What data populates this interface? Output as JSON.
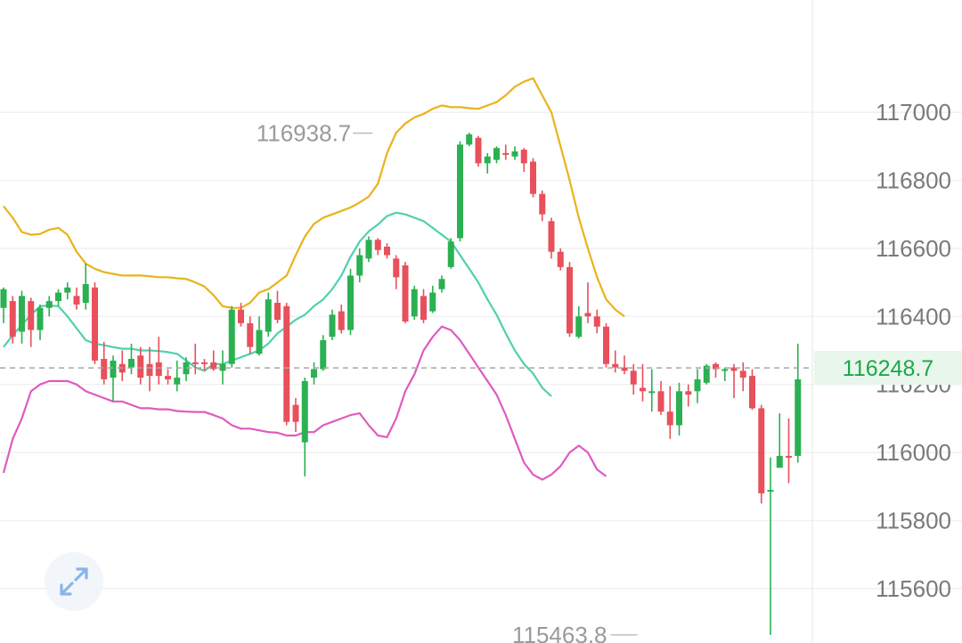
{
  "chart_data": {
    "type": "candlestick",
    "y_axis": {
      "ticks": [
        "117000",
        "116800",
        "116600",
        "116400",
        "116200",
        "116000",
        "115800",
        "115600"
      ],
      "tick_values": [
        117000,
        116800,
        116600,
        116400,
        116200,
        116000,
        115800,
        115600
      ],
      "position": "right",
      "ylim": [
        115440,
        117330
      ]
    },
    "grid": true,
    "current_price": {
      "value": 116248.7,
      "label": "116248.7"
    },
    "extremes": {
      "high": {
        "label": "116938.7",
        "value": 116938.7,
        "index": 41
      },
      "low": {
        "label": "115463.8",
        "value": 115463.8,
        "index": 70
      }
    },
    "candles": [
      [
        116425,
        116480,
        116380,
        116485
      ],
      [
        116445,
        116340,
        116320,
        116460
      ],
      [
        116355,
        116460,
        116320,
        116475
      ],
      [
        116445,
        116360,
        116310,
        116455
      ],
      [
        116360,
        116425,
        116330,
        116435
      ],
      [
        116425,
        116445,
        116400,
        116460
      ],
      [
        116445,
        116470,
        116430,
        116480
      ],
      [
        116470,
        116485,
        116450,
        116500
      ],
      [
        116460,
        116435,
        116420,
        116485
      ],
      [
        116440,
        116495,
        116420,
        116555
      ],
      [
        116485,
        116270,
        116260,
        116500
      ],
      [
        116275,
        116215,
        116200,
        116325
      ],
      [
        116220,
        116270,
        116150,
        116285
      ],
      [
        116260,
        116235,
        116210,
        116300
      ],
      [
        116250,
        116275,
        116230,
        116320
      ],
      [
        116285,
        116220,
        116200,
        116310
      ],
      [
        116260,
        116225,
        116180,
        116310
      ],
      [
        116265,
        116225,
        116200,
        116340
      ],
      [
        116225,
        116215,
        116200,
        116245
      ],
      [
        116200,
        116220,
        116180,
        116270
      ],
      [
        116230,
        116265,
        116210,
        116280
      ],
      [
        116265,
        116260,
        116230,
        116320
      ],
      [
        116265,
        116260,
        116240,
        116275
      ],
      [
        116265,
        116245,
        116240,
        116300
      ],
      [
        116240,
        116260,
        116200,
        116300
      ],
      [
        116260,
        116420,
        116250,
        116430
      ],
      [
        116420,
        116380,
        116370,
        116440
      ],
      [
        116380,
        116310,
        116290,
        116400
      ],
      [
        116290,
        116360,
        116285,
        116400
      ],
      [
        116355,
        116450,
        116340,
        116470
      ],
      [
        116440,
        116390,
        116380,
        116475
      ],
      [
        116430,
        116090,
        116080,
        116440
      ],
      [
        116140,
        116090,
        116060,
        116160
      ],
      [
        116030,
        116210,
        115930,
        116220
      ],
      [
        116220,
        116245,
        116200,
        116265
      ],
      [
        116245,
        116330,
        116240,
        116345
      ],
      [
        116340,
        116405,
        116330,
        116420
      ],
      [
        116415,
        116360,
        116350,
        116435
      ],
      [
        116360,
        116520,
        116345,
        116540
      ],
      [
        116520,
        116580,
        116500,
        116600
      ],
      [
        116570,
        116625,
        116560,
        116635
      ],
      [
        116625,
        116595,
        116580,
        116630
      ],
      [
        116605,
        116580,
        116570,
        116615
      ],
      [
        116570,
        116515,
        116480,
        116580
      ],
      [
        116550,
        116385,
        116380,
        116560
      ],
      [
        116400,
        116480,
        116390,
        116490
      ],
      [
        116460,
        116390,
        116380,
        116480
      ],
      [
        116415,
        116470,
        116410,
        116490
      ],
      [
        116480,
        116510,
        116470,
        116520
      ],
      [
        116545,
        116620,
        116540,
        116630
      ],
      [
        116630,
        116905,
        116620,
        116915
      ],
      [
        116905,
        116935,
        116900,
        116940
      ],
      [
        116925,
        116850,
        116840,
        116930
      ],
      [
        116850,
        116870,
        116820,
        116880
      ],
      [
        116860,
        116895,
        116850,
        116900
      ],
      [
        116880,
        116875,
        116860,
        116905
      ],
      [
        116870,
        116885,
        116860,
        116900
      ],
      [
        116890,
        116850,
        116825,
        116895
      ],
      [
        116855,
        116760,
        116750,
        116865
      ],
      [
        116760,
        116700,
        116680,
        116770
      ],
      [
        116680,
        116590,
        116570,
        116690
      ],
      [
        116590,
        116545,
        116535,
        116600
      ],
      [
        116545,
        116350,
        116340,
        116560
      ],
      [
        116340,
        116400,
        116335,
        116430
      ],
      [
        116410,
        116400,
        116380,
        116500
      ],
      [
        116400,
        116370,
        116350,
        116420
      ],
      [
        116370,
        116260,
        116250,
        116380
      ],
      [
        116260,
        116250,
        116235,
        116300
      ],
      [
        116250,
        116240,
        116230,
        116285
      ],
      [
        116240,
        116200,
        116170,
        116260
      ],
      [
        116190,
        116180,
        116150,
        116260
      ],
      [
        116180,
        116180,
        116120,
        116245
      ],
      [
        116180,
        116120,
        116110,
        116210
      ],
      [
        116120,
        116080,
        116040,
        116195
      ],
      [
        116080,
        116180,
        116050,
        116205
      ],
      [
        116180,
        116170,
        116135,
        116200
      ],
      [
        116180,
        116215,
        116145,
        116245
      ],
      [
        116205,
        116255,
        116200,
        116260
      ],
      [
        116260,
        116245,
        116220,
        116265
      ],
      [
        116245,
        116245,
        116210,
        116250
      ],
      [
        116250,
        116240,
        116160,
        116260
      ],
      [
        116240,
        116220,
        116180,
        116265
      ],
      [
        116225,
        116130,
        116125,
        116245
      ],
      [
        116130,
        115880,
        115850,
        116140
      ],
      [
        115885,
        115890,
        115463.8,
        115985
      ],
      [
        115955,
        115990,
        115960,
        116115
      ],
      [
        115990,
        115985,
        115910,
        116100
      ],
      [
        115990,
        116215,
        115970,
        116320
      ]
    ],
    "series": [
      {
        "name": "",
        "color": "#e9b319",
        "values": [
          116724,
          116690,
          116648,
          116640,
          116642,
          116655,
          116660,
          116640,
          116590,
          116555,
          116540,
          116530,
          116525,
          116520,
          116520,
          116520,
          116518,
          116515,
          116515,
          116512,
          116510,
          116500,
          116488,
          116462,
          116430,
          116425,
          116425,
          116440,
          116470,
          116480,
          116500,
          116520,
          116580,
          116635,
          116672,
          116690,
          116700,
          116710,
          116720,
          116735,
          116752,
          116790,
          116880,
          116940,
          116967,
          116985,
          116995,
          117010,
          117020,
          117015,
          117015,
          117012,
          117010,
          117020,
          117030,
          117050,
          117075,
          117090,
          117100,
          117050,
          117000,
          116900,
          116800,
          116690,
          116600,
          116515,
          116450,
          116420,
          116400
        ]
      },
      {
        "name": "",
        "color": "#4fd1ad",
        "values": [
          116310,
          116345,
          116375,
          116405,
          116430,
          116432,
          116430,
          116400,
          116365,
          116330,
          116320,
          116315,
          116310,
          116305,
          116305,
          116300,
          116300,
          116298,
          116295,
          116290,
          116270,
          116250,
          116240,
          116260,
          116260,
          116270,
          116280,
          116290,
          116300,
          116320,
          116350,
          116370,
          116390,
          116405,
          116430,
          116450,
          116480,
          116520,
          116575,
          116620,
          116650,
          116670,
          116695,
          116705,
          116700,
          116690,
          116680,
          116660,
          116640,
          116620,
          116580,
          116540,
          116500,
          116450,
          116405,
          116350,
          116300,
          116260,
          116232,
          116190,
          116165
        ]
      },
      {
        "name": "",
        "color": "#e05ac0",
        "values": [
          115940,
          116040,
          116100,
          116180,
          116200,
          116210,
          116210,
          116210,
          116200,
          116180,
          116170,
          116160,
          116150,
          116150,
          116140,
          116130,
          116130,
          116127,
          116127,
          116122,
          116120,
          116119,
          116119,
          116110,
          116100,
          116080,
          116070,
          116070,
          116065,
          116060,
          116058,
          116050,
          116050,
          116060,
          116060,
          116080,
          116090,
          116100,
          116110,
          116115,
          116080,
          116050,
          116045,
          116100,
          116180,
          116230,
          116300,
          116340,
          116370,
          116360,
          116330,
          116290,
          116250,
          116210,
          116170,
          116110,
          116040,
          115970,
          115935,
          115920,
          115935,
          115960,
          116000,
          116020,
          116000,
          115950,
          115930
        ]
      }
    ]
  }
}
